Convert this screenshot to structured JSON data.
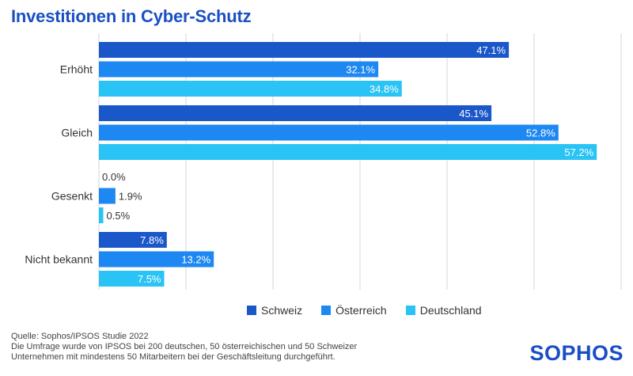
{
  "title": "Investitionen in Cyber-Schutz",
  "chart_data": {
    "type": "bar",
    "orientation": "horizontal",
    "categories": [
      "Erhöht",
      "Gleich",
      "Gesenkt",
      "Nicht bekannt"
    ],
    "series": [
      {
        "name": "Schweiz",
        "color": "#1a57c9",
        "values": [
          47.1,
          45.1,
          0.0,
          7.8
        ],
        "labels": [
          "47.1%",
          "45.1%",
          "0.0%",
          "7.8%"
        ]
      },
      {
        "name": "Österreich",
        "color": "#1e88f2",
        "values": [
          32.1,
          52.8,
          1.9,
          13.2
        ],
        "labels": [
          "32.1%",
          "52.8%",
          "1.9%",
          "13.2%"
        ]
      },
      {
        "name": "Deutschland",
        "color": "#29c3f5",
        "values": [
          34.8,
          57.2,
          0.5,
          7.5
        ],
        "labels": [
          "34.8%",
          "57.2%",
          "0.5%",
          "7.5%"
        ]
      }
    ],
    "xlim": [
      0,
      60
    ],
    "grid": true,
    "legend_position": "bottom"
  },
  "legend": {
    "items": [
      {
        "label": "Schweiz",
        "color": "#1a57c9"
      },
      {
        "label": "Österreich",
        "color": "#1e88f2"
      },
      {
        "label": "Deutschland",
        "color": "#29c3f5"
      }
    ]
  },
  "footnote": {
    "line1": "Quelle: Sophos/IPSOS Studie 2022",
    "line2": "Die Umfrage wurde von IPSOS bei 200 deutschen, 50 österreichischen und 50 Schweizer",
    "line3": "Unternehmen mit mindestens 50 Mitarbeitern bei der Geschäftsleitung durchgeführt."
  },
  "logo": "SOPHOS"
}
